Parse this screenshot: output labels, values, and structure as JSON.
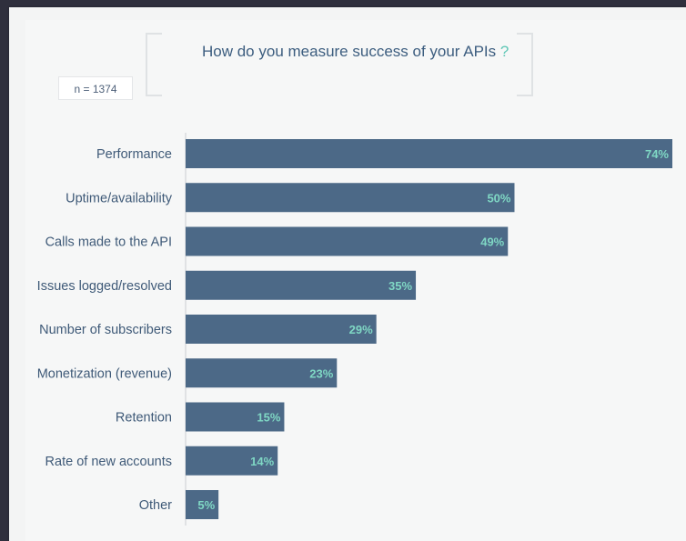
{
  "title": {
    "text": "How do you measure success of your APIs",
    "mark": "?"
  },
  "sample": "n = 1374",
  "colors": {
    "bar": "#4c6987",
    "value_label": "#7fd7c4",
    "category_label": "#3f5a78",
    "axis": "#c9cdd1"
  },
  "chart_data": {
    "type": "bar",
    "orientation": "horizontal",
    "title": "How do you measure success of your APIs ?",
    "categories": [
      "Performance",
      "Uptime/availability",
      "Calls made to the API",
      "Issues logged/resolved",
      "Number of subscribers",
      "Monetization (revenue)",
      "Retention",
      "Rate of new accounts",
      "Other"
    ],
    "values": [
      74,
      50,
      49,
      35,
      29,
      23,
      15,
      14,
      5
    ],
    "value_labels": [
      "74%",
      "50%",
      "49%",
      "35%",
      "29%",
      "23%",
      "15%",
      "14%",
      "5%"
    ],
    "unit": "%",
    "xlim": [
      0,
      74
    ],
    "grid": false,
    "legend": "none"
  }
}
